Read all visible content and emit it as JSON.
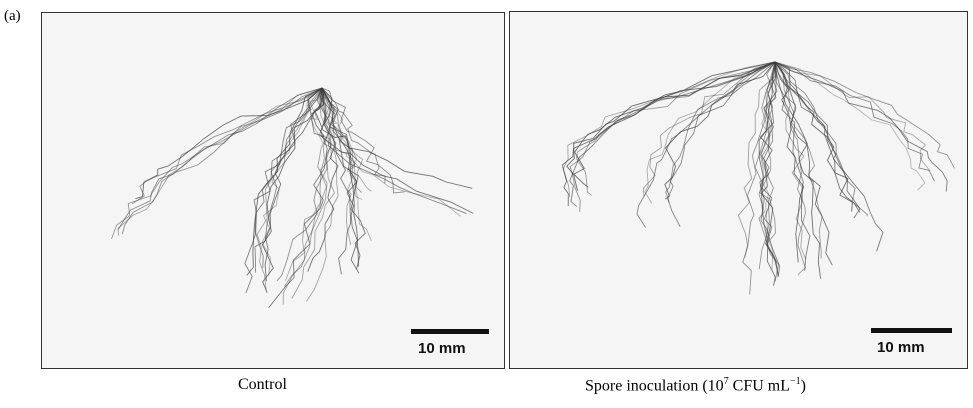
{
  "figure_label": "(a)",
  "panels": [
    {
      "caption": "Control",
      "scale_bar": "10 mm"
    },
    {
      "caption_main": "Spore inoculation (10",
      "caption_exp": "7",
      "caption_unit": " CFU mL",
      "caption_unit_exp": "−1",
      "caption_close": ")",
      "scale_bar": "10 mm"
    }
  ],
  "colors": {
    "root": "#3a3a3a",
    "background": "#f5f5f5"
  }
}
